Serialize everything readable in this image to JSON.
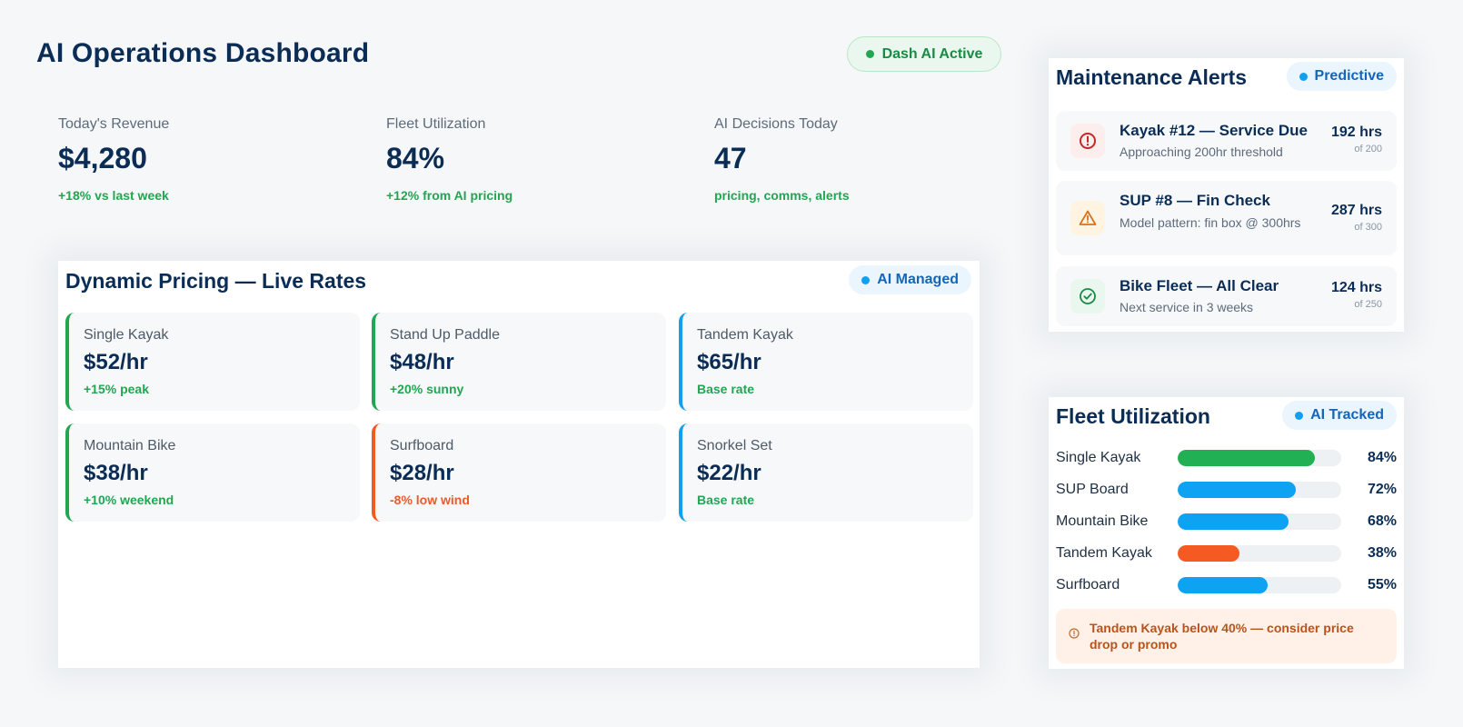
{
  "header": {
    "title": "AI Operations Dashboard",
    "status": "Dash AI Active"
  },
  "kpis": [
    {
      "label": "Today's Revenue",
      "value": "$4,280",
      "delta": "+18% vs last week"
    },
    {
      "label": "Fleet Utilization",
      "value": "84%",
      "delta": "+12% from AI pricing"
    },
    {
      "label": "AI Decisions Today",
      "value": "47",
      "delta": "pricing, comms, alerts"
    }
  ],
  "pricing": {
    "title": "Dynamic Pricing — Live Rates",
    "badge": "AI Managed",
    "cards": [
      {
        "name": "Single Kayak",
        "price": "$52/hr",
        "note": "+15% peak",
        "accent": "#22a651"
      },
      {
        "name": "Stand Up Paddle",
        "price": "$48/hr",
        "note": "+20% sunny",
        "accent": "#22a651"
      },
      {
        "name": "Tandem Kayak",
        "price": "$65/hr",
        "note": "Base rate",
        "accent": "#129ff0"
      },
      {
        "name": "Mountain Bike",
        "price": "$38/hr",
        "note": "+10% weekend",
        "accent": "#22a651"
      },
      {
        "name": "Surfboard",
        "price": "$28/hr",
        "note": "-8% low wind",
        "accent": "#f05a24"
      },
      {
        "name": "Snorkel Set",
        "price": "$22/hr",
        "note": "Base rate",
        "accent": "#129ff0"
      }
    ]
  },
  "maintenance": {
    "title": "Maintenance Alerts",
    "badge": "Predictive",
    "alerts": [
      {
        "title": "Kayak #12 — Service Due",
        "subtitle": "Approaching 200hr threshold",
        "hours": "192 hrs",
        "of": "of 200",
        "icon": "error-circle-icon",
        "severity": "#c62828"
      },
      {
        "title": "SUP #8 — Fin Check",
        "subtitle": "Model pattern: fin box @ 300hrs",
        "hours": "287 hrs",
        "of": "of 300",
        "icon": "warning-triangle-icon",
        "severity": "#d9731a"
      },
      {
        "title": "Bike Fleet — All Clear",
        "subtitle": "Next service in 3 weeks",
        "hours": "124 hrs",
        "of": "of 250",
        "icon": "check-circle-icon",
        "severity": "#1b8a45"
      }
    ]
  },
  "utilization": {
    "title": "Fleet Utilization",
    "badge": "AI Tracked",
    "rows": [
      {
        "label": "Single Kayak",
        "pct_label": "84%",
        "value": 84,
        "color": "#22b055"
      },
      {
        "label": "SUP Board",
        "pct_label": "72%",
        "value": 72,
        "color": "#0ea2f2"
      },
      {
        "label": "Mountain Bike",
        "pct_label": "68%",
        "value": 68,
        "color": "#0ea2f2"
      },
      {
        "label": "Tandem Kayak",
        "pct_label": "38%",
        "value": 38,
        "color": "#f45a22"
      },
      {
        "label": "Surfboard",
        "pct_label": "55%",
        "value": 55,
        "color": "#0ea2f2"
      }
    ],
    "warning": "Tandem Kayak below 40% — consider price drop or promo"
  }
}
